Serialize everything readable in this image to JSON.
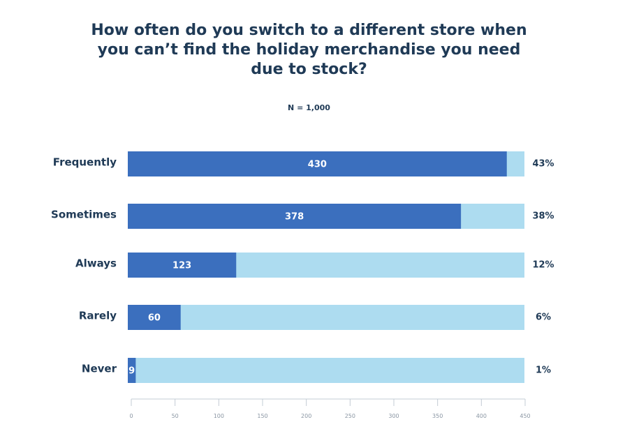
{
  "chart_data": {
    "type": "bar",
    "orientation": "horizontal",
    "stacked": true,
    "title_lines": [
      "How often do you switch to a different store when",
      "you can’t find the holiday merchandise you need",
      "due to stock?"
    ],
    "subtitle": "N = 1,000",
    "categories": [
      "Frequently",
      "Sometimes",
      "Always",
      "Rarely",
      "Never"
    ],
    "values": [
      430,
      378,
      123,
      60,
      9
    ],
    "percent_labels": [
      "43%",
      "38%",
      "12%",
      "6%",
      "1%"
    ],
    "xlim": [
      0,
      450
    ],
    "ticks": [
      0,
      50,
      100,
      150,
      200,
      250,
      300,
      350,
      400,
      450
    ],
    "grid": false,
    "colors": {
      "value": "#3b6fbe",
      "background": "#addcf0",
      "text": "#1f3a56",
      "axis": "#c3ccd4",
      "tick_text": "#8a96a3"
    }
  }
}
